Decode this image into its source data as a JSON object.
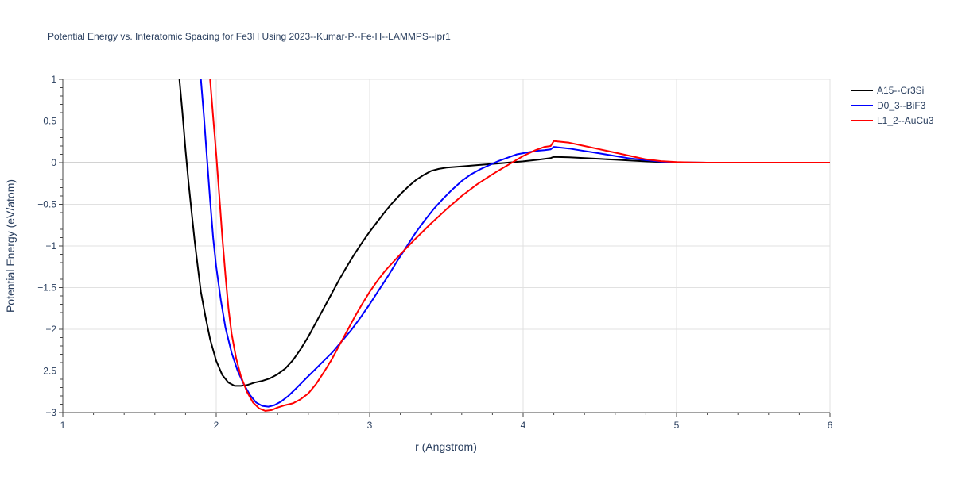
{
  "chart_data": {
    "type": "line",
    "title": "Potential Energy vs. Interatomic Spacing for Fe3H Using 2023--Kumar-P--Fe-H--LAMMPS--ipr1",
    "xlabel": "r (Angstrom)",
    "ylabel": "Potential Energy (eV/atom)",
    "xlim": [
      1,
      6
    ],
    "ylim": [
      -3,
      1
    ],
    "xticks": [
      1,
      2,
      3,
      4,
      5,
      6
    ],
    "xtick_labels": [
      "1",
      "2",
      "3",
      "4",
      "5",
      "6"
    ],
    "yticks": [
      1,
      0.5,
      0,
      -0.5,
      -1,
      -1.5,
      -2,
      -2.5,
      -3
    ],
    "ytick_labels": [
      "1",
      "0.5",
      "0",
      "−0.5",
      "−1",
      "−1.5",
      "−2",
      "−2.5",
      "−3"
    ],
    "grid": true,
    "legend_position": "top-right",
    "series": [
      {
        "name": "A15--Cr3Si",
        "color": "#000000",
        "points": [
          [
            1.76,
            1.0
          ],
          [
            1.78,
            0.6
          ],
          [
            1.8,
            0.15
          ],
          [
            1.82,
            -0.25
          ],
          [
            1.84,
            -0.6
          ],
          [
            1.86,
            -0.95
          ],
          [
            1.88,
            -1.25
          ],
          [
            1.9,
            -1.55
          ],
          [
            1.93,
            -1.85
          ],
          [
            1.96,
            -2.12
          ],
          [
            2.0,
            -2.38
          ],
          [
            2.04,
            -2.55
          ],
          [
            2.08,
            -2.64
          ],
          [
            2.12,
            -2.68
          ],
          [
            2.16,
            -2.68
          ],
          [
            2.2,
            -2.67
          ],
          [
            2.25,
            -2.64
          ],
          [
            2.3,
            -2.62
          ],
          [
            2.35,
            -2.59
          ],
          [
            2.4,
            -2.54
          ],
          [
            2.45,
            -2.47
          ],
          [
            2.5,
            -2.37
          ],
          [
            2.55,
            -2.24
          ],
          [
            2.6,
            -2.09
          ],
          [
            2.65,
            -1.92
          ],
          [
            2.7,
            -1.75
          ],
          [
            2.75,
            -1.58
          ],
          [
            2.8,
            -1.41
          ],
          [
            2.85,
            -1.25
          ],
          [
            2.9,
            -1.1
          ],
          [
            2.95,
            -0.96
          ],
          [
            3.0,
            -0.83
          ],
          [
            3.05,
            -0.71
          ],
          [
            3.1,
            -0.59
          ],
          [
            3.15,
            -0.48
          ],
          [
            3.2,
            -0.38
          ],
          [
            3.25,
            -0.29
          ],
          [
            3.3,
            -0.21
          ],
          [
            3.35,
            -0.15
          ],
          [
            3.4,
            -0.1
          ],
          [
            3.45,
            -0.075
          ],
          [
            3.5,
            -0.06
          ],
          [
            3.6,
            -0.045
          ],
          [
            3.7,
            -0.03
          ],
          [
            3.8,
            -0.015
          ],
          [
            3.9,
            0.0
          ],
          [
            4.0,
            0.015
          ],
          [
            4.1,
            0.035
          ],
          [
            4.18,
            0.055
          ],
          [
            4.2,
            0.07
          ],
          [
            4.3,
            0.065
          ],
          [
            4.4,
            0.055
          ],
          [
            4.5,
            0.045
          ],
          [
            4.6,
            0.035
          ],
          [
            4.7,
            0.025
          ],
          [
            4.8,
            0.015
          ],
          [
            4.9,
            0.008
          ],
          [
            5.0,
            0.003
          ],
          [
            5.1,
            0.001
          ],
          [
            5.2,
            0.0
          ],
          [
            6.0,
            0.0
          ]
        ]
      },
      {
        "name": "D0_3--BiF3",
        "color": "#0000ff",
        "points": [
          [
            1.9,
            1.0
          ],
          [
            1.92,
            0.55
          ],
          [
            1.94,
            0.05
          ],
          [
            1.96,
            -0.45
          ],
          [
            1.98,
            -0.9
          ],
          [
            2.0,
            -1.25
          ],
          [
            2.03,
            -1.65
          ],
          [
            2.06,
            -1.98
          ],
          [
            2.1,
            -2.28
          ],
          [
            2.14,
            -2.5
          ],
          [
            2.18,
            -2.66
          ],
          [
            2.22,
            -2.79
          ],
          [
            2.26,
            -2.88
          ],
          [
            2.3,
            -2.92
          ],
          [
            2.34,
            -2.93
          ],
          [
            2.38,
            -2.91
          ],
          [
            2.42,
            -2.87
          ],
          [
            2.47,
            -2.8
          ],
          [
            2.52,
            -2.71
          ],
          [
            2.58,
            -2.6
          ],
          [
            2.64,
            -2.49
          ],
          [
            2.7,
            -2.38
          ],
          [
            2.76,
            -2.27
          ],
          [
            2.82,
            -2.14
          ],
          [
            2.88,
            -2.01
          ],
          [
            2.94,
            -1.86
          ],
          [
            3.0,
            -1.7
          ],
          [
            3.06,
            -1.53
          ],
          [
            3.12,
            -1.36
          ],
          [
            3.18,
            -1.18
          ],
          [
            3.24,
            -1.01
          ],
          [
            3.3,
            -0.84
          ],
          [
            3.36,
            -0.69
          ],
          [
            3.42,
            -0.55
          ],
          [
            3.48,
            -0.43
          ],
          [
            3.54,
            -0.32
          ],
          [
            3.6,
            -0.22
          ],
          [
            3.66,
            -0.14
          ],
          [
            3.72,
            -0.08
          ],
          [
            3.78,
            -0.03
          ],
          [
            3.84,
            0.02
          ],
          [
            3.9,
            0.06
          ],
          [
            3.96,
            0.1
          ],
          [
            4.02,
            0.12
          ],
          [
            4.08,
            0.14
          ],
          [
            4.14,
            0.15
          ],
          [
            4.18,
            0.16
          ],
          [
            4.2,
            0.19
          ],
          [
            4.3,
            0.17
          ],
          [
            4.4,
            0.14
          ],
          [
            4.5,
            0.11
          ],
          [
            4.6,
            0.08
          ],
          [
            4.7,
            0.05
          ],
          [
            4.8,
            0.03
          ],
          [
            4.9,
            0.012
          ],
          [
            5.0,
            0.004
          ],
          [
            5.1,
            0.001
          ],
          [
            5.2,
            0.0
          ],
          [
            6.0,
            0.0
          ]
        ]
      },
      {
        "name": "L1_2--AuCu3",
        "color": "#ff0000",
        "points": [
          [
            1.96,
            1.0
          ],
          [
            1.98,
            0.55
          ],
          [
            2.0,
            0.1
          ],
          [
            2.02,
            -0.4
          ],
          [
            2.04,
            -0.9
          ],
          [
            2.06,
            -1.35
          ],
          [
            2.08,
            -1.75
          ],
          [
            2.1,
            -2.05
          ],
          [
            2.13,
            -2.35
          ],
          [
            2.16,
            -2.56
          ],
          [
            2.2,
            -2.75
          ],
          [
            2.24,
            -2.88
          ],
          [
            2.28,
            -2.95
          ],
          [
            2.32,
            -2.98
          ],
          [
            2.36,
            -2.97
          ],
          [
            2.4,
            -2.94
          ],
          [
            2.45,
            -2.91
          ],
          [
            2.5,
            -2.89
          ],
          [
            2.55,
            -2.84
          ],
          [
            2.6,
            -2.77
          ],
          [
            2.65,
            -2.66
          ],
          [
            2.7,
            -2.52
          ],
          [
            2.75,
            -2.37
          ],
          [
            2.8,
            -2.2
          ],
          [
            2.85,
            -2.03
          ],
          [
            2.9,
            -1.86
          ],
          [
            2.95,
            -1.7
          ],
          [
            3.0,
            -1.55
          ],
          [
            3.05,
            -1.42
          ],
          [
            3.1,
            -1.3
          ],
          [
            3.15,
            -1.2
          ],
          [
            3.2,
            -1.1
          ],
          [
            3.3,
            -0.91
          ],
          [
            3.4,
            -0.73
          ],
          [
            3.5,
            -0.56
          ],
          [
            3.6,
            -0.4
          ],
          [
            3.7,
            -0.26
          ],
          [
            3.8,
            -0.14
          ],
          [
            3.9,
            -0.03
          ],
          [
            4.0,
            0.08
          ],
          [
            4.08,
            0.15
          ],
          [
            4.14,
            0.19
          ],
          [
            4.18,
            0.2
          ],
          [
            4.2,
            0.26
          ],
          [
            4.3,
            0.24
          ],
          [
            4.4,
            0.2
          ],
          [
            4.5,
            0.16
          ],
          [
            4.6,
            0.12
          ],
          [
            4.7,
            0.08
          ],
          [
            4.8,
            0.04
          ],
          [
            4.9,
            0.018
          ],
          [
            5.0,
            0.007
          ],
          [
            5.1,
            0.002
          ],
          [
            5.2,
            0.0
          ],
          [
            6.0,
            0.0
          ]
        ]
      }
    ]
  }
}
